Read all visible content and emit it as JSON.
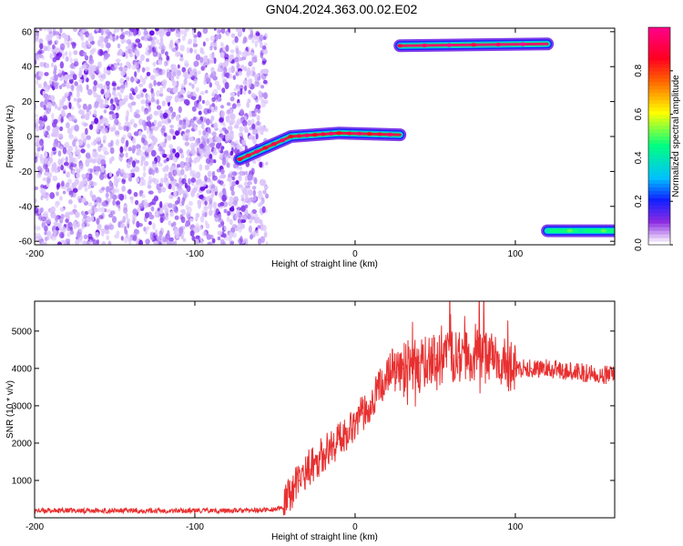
{
  "title": "GN04.2024.363.00.02.E02",
  "chart_data": [
    {
      "type": "heatmap",
      "xlabel": "Height of straight line (km)",
      "ylabel": "Frequency (Hz)",
      "xlim": [
        -200,
        162
      ],
      "ylim": [
        -62,
        62
      ],
      "xticks": [
        -200,
        -100,
        0,
        100
      ],
      "yticks": [
        -60,
        -40,
        -20,
        0,
        20,
        40,
        60
      ],
      "colorbar": {
        "label": "Normalized spectral amplitude",
        "range": [
          0,
          1
        ],
        "ticks": [
          "0.0",
          "0.2",
          "0.4",
          "0.6",
          "0.8"
        ],
        "tick_values": [
          0.0,
          0.2,
          0.4,
          0.6,
          0.8
        ]
      },
      "noise_region": {
        "x": [
          -200,
          -55
        ],
        "y": [
          -62,
          62
        ],
        "amplitude": "low (0.0–0.1)"
      },
      "features": [
        {
          "x": [
            -72,
            -40,
            -10,
            28
          ],
          "y": [
            -13,
            0,
            2,
            1
          ],
          "amplitude": 0.9
        },
        {
          "x": [
            28,
            120
          ],
          "y": [
            52,
            53
          ],
          "amplitude": 0.95
        },
        {
          "x": [
            120,
            162
          ],
          "y": [
            -54,
            -54
          ],
          "amplitude": 0.45
        }
      ]
    },
    {
      "type": "line",
      "xlabel": "Height of straight line (km)",
      "ylabel": "SNR (10 * v/v)",
      "xlim": [
        -200,
        162
      ],
      "ylim": [
        0,
        5800
      ],
      "xticks": [
        -200,
        -100,
        0,
        100
      ],
      "yticks": [
        1000,
        2000,
        3000,
        4000,
        5000
      ],
      "series": [
        {
          "color": "#e83030",
          "x": [
            -200,
            -180,
            -160,
            -140,
            -120,
            -100,
            -80,
            -60,
            -45,
            -40,
            -35,
            -30,
            -25,
            -20,
            -15,
            -10,
            -5,
            0,
            5,
            10,
            15,
            20,
            25,
            30,
            35,
            40,
            45,
            50,
            55,
            60,
            65,
            70,
            75,
            80,
            85,
            90,
            95,
            100,
            110,
            120,
            130,
            140,
            150,
            162
          ],
          "y": [
            190,
            190,
            190,
            190,
            190,
            190,
            190,
            200,
            250,
            700,
            1000,
            1300,
            1500,
            1700,
            1900,
            2100,
            2300,
            2600,
            2800,
            3100,
            3500,
            3700,
            3900,
            4000,
            4100,
            4150,
            4200,
            4250,
            4250,
            4300,
            4300,
            4300,
            4350,
            4300,
            4250,
            4200,
            4100,
            4000,
            4000,
            4000,
            3950,
            3900,
            3850,
            3800
          ]
        }
      ]
    }
  ]
}
